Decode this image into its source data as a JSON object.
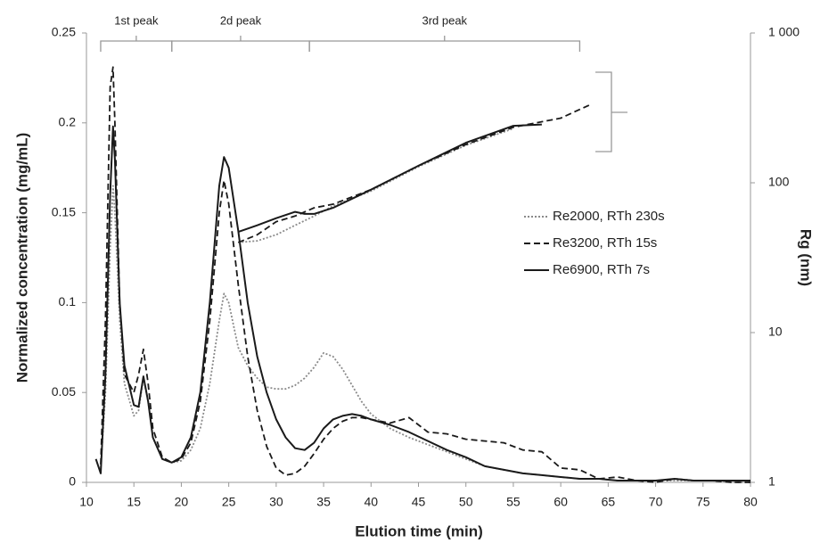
{
  "chart_data": {
    "type": "line",
    "xlabel": "Elution time (min)",
    "ylabel": "Normalized concentration (mg/mL)",
    "y2label": "Rg (nm)",
    "xlim": [
      10,
      80
    ],
    "xticks": [
      10,
      15,
      20,
      25,
      30,
      35,
      40,
      45,
      50,
      55,
      60,
      65,
      70,
      75,
      80
    ],
    "ylim": [
      0,
      0.25
    ],
    "yticks": [
      0,
      0.05,
      0.1,
      0.15,
      0.2,
      0.25
    ],
    "y2lim": [
      1,
      1000
    ],
    "y2log": true,
    "y2ticks": [
      1,
      10,
      100,
      {
        "value": 1000,
        "label": "1 000"
      }
    ],
    "grid": false,
    "legend": "right",
    "x": [
      11,
      11.5,
      12,
      12.5,
      12.8,
      13,
      13.5,
      14,
      15,
      15.5,
      16,
      16.5,
      17,
      18,
      19,
      20,
      21,
      22,
      23,
      24,
      24.5,
      25,
      26,
      27,
      28,
      29,
      30,
      31,
      32,
      33,
      34,
      35,
      36,
      37,
      38,
      39,
      40,
      42,
      44,
      46,
      48,
      50,
      52,
      54,
      56,
      58,
      60,
      62,
      64,
      66,
      68,
      70,
      72,
      74,
      76,
      78,
      80
    ],
    "series": [
      {
        "name": "Re2000, RTh 230s",
        "color": "#8a8a8a",
        "line_style": "dotted",
        "values": [
          null,
          0.008,
          0.05,
          0.13,
          0.165,
          0.15,
          0.09,
          0.055,
          0.037,
          0.04,
          0.058,
          0.045,
          0.025,
          0.013,
          0.011,
          0.012,
          0.018,
          0.03,
          0.055,
          0.09,
          0.105,
          0.1,
          0.075,
          0.065,
          0.058,
          0.053,
          0.052,
          0.052,
          0.054,
          0.058,
          0.064,
          0.072,
          0.07,
          0.063,
          0.054,
          0.045,
          0.038,
          0.03,
          0.025,
          0.021,
          0.017,
          0.013,
          0.009,
          0.007,
          0.005,
          0.004,
          0.003,
          0.002,
          0.002,
          0.001,
          0.001,
          0.001,
          0.001,
          0.001,
          0.001,
          0,
          0
        ]
      },
      {
        "name": "Re3200, RTh 15s",
        "color": "#1a1a1a",
        "line_style": "dashed",
        "values": [
          null,
          0.01,
          0.09,
          0.22,
          0.231,
          0.2,
          0.1,
          0.06,
          0.05,
          0.06,
          0.074,
          0.055,
          0.03,
          0.014,
          0.011,
          0.013,
          0.022,
          0.045,
          0.09,
          0.15,
          0.168,
          0.155,
          0.11,
          0.07,
          0.04,
          0.02,
          0.008,
          0.004,
          0.005,
          0.009,
          0.016,
          0.024,
          0.03,
          0.034,
          0.036,
          0.036,
          0.035,
          0.033,
          0.036,
          0.028,
          0.027,
          0.024,
          0.023,
          0.022,
          0.018,
          0.017,
          0.008,
          0.007,
          0.002,
          0.003,
          0.001,
          0,
          0.002,
          0.001,
          0.001,
          0,
          0
        ]
      },
      {
        "name": "Re6900, RTh 7s",
        "color": "#1a1a1a",
        "line_style": "solid",
        "values": [
          0.013,
          0.005,
          0.06,
          0.16,
          0.198,
          0.18,
          0.1,
          0.065,
          0.043,
          0.042,
          0.059,
          0.045,
          0.025,
          0.013,
          0.011,
          0.014,
          0.025,
          0.05,
          0.1,
          0.165,
          0.181,
          0.175,
          0.14,
          0.1,
          0.07,
          0.05,
          0.035,
          0.025,
          0.019,
          0.018,
          0.022,
          0.03,
          0.035,
          0.037,
          0.038,
          0.037,
          0.035,
          0.032,
          0.028,
          0.023,
          0.018,
          0.014,
          0.009,
          0.007,
          0.005,
          0.004,
          0.003,
          0.002,
          0.002,
          0.001,
          0.001,
          0.001,
          0.002,
          0.001,
          0.001,
          0.001,
          0.001
        ]
      },
      {
        "axis": "y2",
        "color": "#8a8a8a",
        "line_style": "dotted",
        "x": [
          26,
          28,
          30,
          32,
          34,
          36,
          40,
          45,
          50,
          55
        ],
        "values": [
          40,
          41,
          45,
          52,
          60,
          70,
          88,
          128,
          178,
          230
        ]
      },
      {
        "axis": "y2",
        "color": "#1a1a1a",
        "line_style": "dashed",
        "x": [
          26,
          28,
          30,
          32,
          34,
          36,
          40,
          45,
          50,
          55,
          60,
          63
        ],
        "values": [
          40,
          45,
          55,
          60,
          68,
          72,
          90,
          130,
          180,
          235,
          270,
          330
        ]
      },
      {
        "axis": "y2",
        "color": "#1a1a1a",
        "line_style": "solid",
        "x": [
          26,
          28,
          30,
          32,
          33,
          34,
          36,
          40,
          45,
          50,
          55,
          58
        ],
        "values": [
          47,
          52,
          58,
          64,
          62,
          62,
          68,
          90,
          130,
          185,
          240,
          245
        ]
      }
    ],
    "annotations": [
      {
        "text": "1st peak",
        "x": [
          11.5,
          19
        ]
      },
      {
        "text": "2d peak",
        "x": [
          19,
          33.5
        ]
      },
      {
        "text": "3rd peak",
        "x": [
          33.5,
          62
        ]
      }
    ]
  }
}
